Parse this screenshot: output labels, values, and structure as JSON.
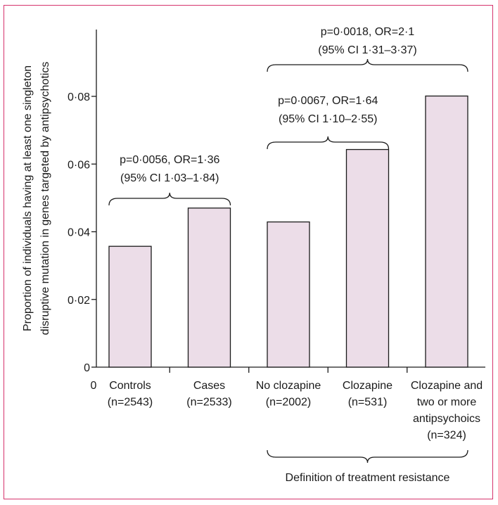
{
  "chart_data": {
    "type": "bar",
    "ylabel": [
      "Proportion of individuals having at least one singleton",
      "disruptive mutation in genes targeted by antipsychotics"
    ],
    "ylim": [
      0,
      0.08
    ],
    "yticks": [
      0,
      0.02,
      0.04,
      0.06,
      0.08
    ],
    "ytick_labels": [
      "0",
      "0·02",
      "0·04",
      "0·06",
      "0·08"
    ],
    "x_origin_label": "0",
    "categories": [
      [
        "Controls",
        "(n=2543)"
      ],
      [
        "Cases",
        "(n=2533)"
      ],
      [
        "No clozapine",
        "(n=2002)"
      ],
      [
        "Clozapine",
        "(n=531)"
      ],
      [
        "Clozapine and",
        "two or more",
        "antipsychoics",
        "(n=324)"
      ]
    ],
    "values": [
      0.0357,
      0.047,
      0.0429,
      0.0643,
      0.0801
    ],
    "annotations": [
      {
        "from": 0,
        "to": 1,
        "lines": [
          "p=0·0056, OR=1·36",
          "(95% CI 1·03–1·84)"
        ]
      },
      {
        "from": 2,
        "to": 3,
        "lines": [
          "p=0·0067, OR=1·64",
          "(95% CI 1·10–2·55)"
        ]
      },
      {
        "from": 2,
        "to": 4,
        "lines": [
          "p=0·0018, OR=2·1",
          "(95% CI 1·31–3·37)"
        ]
      }
    ],
    "group_label": {
      "from": 2,
      "to": 4,
      "text": "Definition of treatment resistance"
    },
    "bar_color": "#ecdde8",
    "frame_color": "#d6336c",
    "grid": false
  }
}
